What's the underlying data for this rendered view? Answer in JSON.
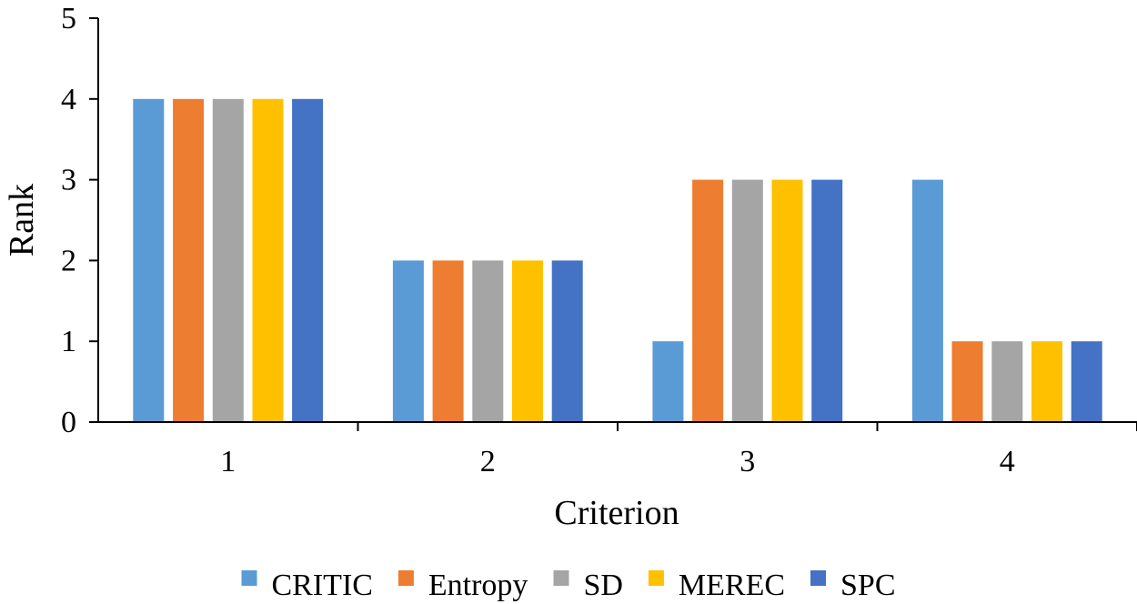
{
  "chart_data": {
    "type": "bar",
    "title": "",
    "xlabel": "Criterion",
    "ylabel": "Rank",
    "categories": [
      "1",
      "2",
      "3",
      "4"
    ],
    "ylim": [
      0,
      5
    ],
    "yticks": [
      "0",
      "1",
      "2",
      "3",
      "4",
      "5"
    ],
    "grid": false,
    "legend_position": "bottom",
    "series": [
      {
        "name": "CRITIC",
        "color": "#5B9BD5",
        "values": [
          4,
          2,
          1,
          3
        ]
      },
      {
        "name": "Entropy",
        "color": "#ED7D31",
        "values": [
          4,
          2,
          3,
          1
        ]
      },
      {
        "name": "SD",
        "color": "#A5A5A5",
        "values": [
          4,
          2,
          3,
          1
        ]
      },
      {
        "name": "MEREC",
        "color": "#FFC000",
        "values": [
          4,
          2,
          3,
          1
        ]
      },
      {
        "name": "SPC",
        "color": "#4472C4",
        "values": [
          4,
          2,
          3,
          1
        ]
      }
    ]
  }
}
